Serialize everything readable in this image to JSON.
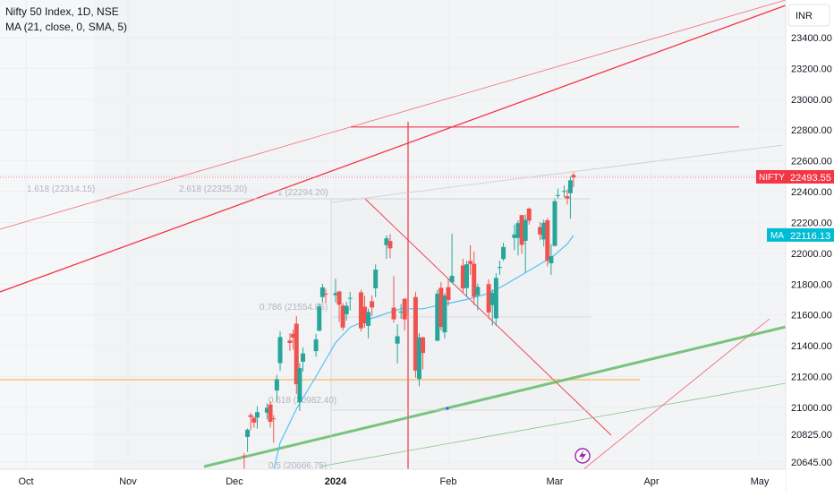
{
  "header": {
    "title": "Nifty 50 Index, 1D, NSE",
    "indicator": "MA (21, close, 0, SMA, 5)"
  },
  "currency_button": "INR",
  "price_tags": {
    "nifty_label": "NIFTY",
    "nifty_value": "22493.55",
    "ma_label": "MA",
    "ma_value": "22116.13"
  },
  "colors": {
    "up": "#26a69a",
    "down": "#ef5350",
    "ma_line": "#4fc3f7",
    "trendline_red": "#f23645",
    "trendline_green": "#66bb6a",
    "horizontal_orange": "#ff9800",
    "nifty_tag": "#f23645",
    "ma_tag": "#00bcd4",
    "lightning_icon": "#9c27b0"
  },
  "fib_labels": [
    {
      "text": "1.618 (22314.15)"
    },
    {
      "text": "2.618 (22325.20)"
    },
    {
      "text": "1 (22294.20)"
    },
    {
      "text": "0.786 (21554.85)"
    },
    {
      "text": "0.618 (20982.40)"
    },
    {
      "text": "0.5 (20666.75)"
    }
  ],
  "chart_data": {
    "type": "candlestick",
    "title": "Nifty 50 Index, 1D, NSE",
    "y_ticks": [
      20645.0,
      20825.0,
      21000.0,
      21200.0,
      21400.0,
      21600.0,
      21800.0,
      22000.0,
      22200.0,
      22400.0,
      22600.0,
      22800.0,
      23000.0,
      23200.0,
      23400.0
    ],
    "y_tick_labels": [
      "20645.00",
      "20825.00",
      "21000.00",
      "21200.00",
      "21400.00",
      "21600.00",
      "21800.00",
      "22000.00",
      "22200.00",
      "22400.00",
      "22600.00",
      "22800.00",
      "23000.00",
      "23200.00",
      "23400.00"
    ],
    "x_ticks": [
      "2023-10-01",
      "2023-11-01",
      "2023-12-01",
      "2024-01-01",
      "2024-02-01",
      "2024-03-01",
      "2024-04-01",
      "2024-05-01"
    ],
    "x_tick_labels": [
      "Oct",
      "Nov",
      "Dec",
      "2024",
      "Feb",
      "Mar",
      "Apr",
      "May"
    ],
    "candles": [
      {
        "date": "2023-12-04",
        "open": 20687,
        "high": 20703,
        "low": 20601,
        "close": 20686
      },
      {
        "date": "2023-12-05",
        "open": 20808,
        "high": 20864,
        "low": 20711,
        "close": 20855
      },
      {
        "date": "2023-12-06",
        "open": 20950,
        "high": 20962,
        "low": 20853,
        "close": 20937
      },
      {
        "date": "2023-12-07",
        "open": 20932,
        "high": 20941,
        "low": 20868,
        "close": 20901
      },
      {
        "date": "2023-12-08",
        "open": 20934,
        "high": 21007,
        "low": 20862,
        "close": 20969
      },
      {
        "date": "2023-12-11",
        "open": 20966,
        "high": 21026,
        "low": 20923,
        "close": 20997
      },
      {
        "date": "2023-12-12",
        "open": 21019,
        "high": 21038,
        "low": 20868,
        "close": 20906
      },
      {
        "date": "2023-12-13",
        "open": 20929,
        "high": 20950,
        "low": 20770,
        "close": 20926
      },
      {
        "date": "2023-12-14",
        "open": 21110,
        "high": 21211,
        "low": 21036,
        "close": 21183
      },
      {
        "date": "2023-12-15",
        "open": 21287,
        "high": 21493,
        "low": 21237,
        "close": 21457
      },
      {
        "date": "2023-12-18",
        "open": 21434,
        "high": 21482,
        "low": 21366,
        "close": 21418
      },
      {
        "date": "2023-12-19",
        "open": 21477,
        "high": 21505,
        "low": 21375,
        "close": 21453
      },
      {
        "date": "2023-12-20",
        "open": 21543,
        "high": 21593,
        "low": 21087,
        "close": 21150
      },
      {
        "date": "2023-12-21",
        "open": 21034,
        "high": 21288,
        "low": 20977,
        "close": 21255
      },
      {
        "date": "2023-12-22",
        "open": 21296,
        "high": 21390,
        "low": 21232,
        "close": 21350
      },
      {
        "date": "2023-12-26",
        "open": 21365,
        "high": 21477,
        "low": 21329,
        "close": 21441
      },
      {
        "date": "2023-12-27",
        "open": 21497,
        "high": 21675,
        "low": 21495,
        "close": 21655
      },
      {
        "date": "2023-12-28",
        "open": 21716,
        "high": 21802,
        "low": 21680,
        "close": 21779
      },
      {
        "date": "2023-12-29",
        "open": 21738,
        "high": 21770,
        "low": 21677,
        "close": 21732
      },
      {
        "date": "2024-01-01",
        "open": 21728,
        "high": 21834,
        "low": 21680,
        "close": 21742
      },
      {
        "date": "2024-01-02",
        "open": 21752,
        "high": 21756,
        "low": 21555,
        "close": 21666
      },
      {
        "date": "2024-01-03",
        "open": 21661,
        "high": 21677,
        "low": 21500,
        "close": 21518
      },
      {
        "date": "2024-01-04",
        "open": 21605,
        "high": 21685,
        "low": 21564,
        "close": 21659
      },
      {
        "date": "2024-01-05",
        "open": 21705,
        "high": 21749,
        "low": 21629,
        "close": 21711
      },
      {
        "date": "2024-01-08",
        "open": 21747,
        "high": 21763,
        "low": 21492,
        "close": 21513
      },
      {
        "date": "2024-01-09",
        "open": 21653,
        "high": 21724,
        "low": 21517,
        "close": 21545
      },
      {
        "date": "2024-01-10",
        "open": 21529,
        "high": 21641,
        "low": 21448,
        "close": 21619
      },
      {
        "date": "2024-01-11",
        "open": 21689,
        "high": 21726,
        "low": 21593,
        "close": 21648
      },
      {
        "date": "2024-01-12",
        "open": 21773,
        "high": 21928,
        "low": 21715,
        "close": 21894
      },
      {
        "date": "2024-01-15",
        "open": 22053,
        "high": 22116,
        "low": 21964,
        "close": 22097
      },
      {
        "date": "2024-01-16",
        "open": 22080,
        "high": 22124,
        "low": 21969,
        "close": 22032
      },
      {
        "date": "2024-01-17",
        "open": 21647,
        "high": 21851,
        "low": 21550,
        "close": 21572
      },
      {
        "date": "2024-01-18",
        "open": 21414,
        "high": 21539,
        "low": 21285,
        "close": 21462
      },
      {
        "date": "2024-01-19",
        "open": 21615,
        "high": 21671,
        "low": 21575,
        "close": 21622
      },
      {
        "date": "2024-01-20",
        "open": 21706,
        "high": 21707,
        "low": 21500,
        "close": 21571
      },
      {
        "date": "2024-01-23",
        "open": 21716,
        "high": 21750,
        "low": 21192,
        "close": 21239
      },
      {
        "date": "2024-01-24",
        "open": 21185,
        "high": 21482,
        "low": 21137,
        "close": 21454
      },
      {
        "date": "2024-01-25",
        "open": 21454,
        "high": 21459,
        "low": 21247,
        "close": 21353
      },
      {
        "date": "2024-01-29",
        "open": 21433,
        "high": 21764,
        "low": 21429,
        "close": 21738
      },
      {
        "date": "2024-01-30",
        "open": 21776,
        "high": 21814,
        "low": 21501,
        "close": 21522
      },
      {
        "date": "2024-01-31",
        "open": 21487,
        "high": 21741,
        "low": 21448,
        "close": 21726
      },
      {
        "date": "2024-02-01",
        "open": 21780,
        "high": 21833,
        "low": 21659,
        "close": 21697
      },
      {
        "date": "2024-02-02",
        "open": 21812,
        "high": 22127,
        "low": 21805,
        "close": 21854
      },
      {
        "date": "2024-02-05",
        "open": 21921,
        "high": 21964,
        "low": 21742,
        "close": 21772
      },
      {
        "date": "2024-02-06",
        "open": 21775,
        "high": 21952,
        "low": 21715,
        "close": 21929
      },
      {
        "date": "2024-02-07",
        "open": 21950,
        "high": 22053,
        "low": 21860,
        "close": 21931
      },
      {
        "date": "2024-02-08",
        "open": 21932,
        "high": 22011,
        "low": 21665,
        "close": 21718
      },
      {
        "date": "2024-02-09",
        "open": 21727,
        "high": 21804,
        "low": 21629,
        "close": 21782
      },
      {
        "date": "2024-02-12",
        "open": 21800,
        "high": 21831,
        "low": 21574,
        "close": 21616
      },
      {
        "date": "2024-02-13",
        "open": 21664,
        "high": 21766,
        "low": 21530,
        "close": 21743
      },
      {
        "date": "2024-02-14",
        "open": 21578,
        "high": 21870,
        "low": 21530,
        "close": 21840
      },
      {
        "date": "2024-02-15",
        "open": 21906,
        "high": 21953,
        "low": 21860,
        "close": 21911
      },
      {
        "date": "2024-02-16",
        "open": 21963,
        "high": 22069,
        "low": 21950,
        "close": 22041
      },
      {
        "date": "2024-02-19",
        "open": 22100,
        "high": 22186,
        "low": 22021,
        "close": 22122
      },
      {
        "date": "2024-02-20",
        "open": 22099,
        "high": 22215,
        "low": 21985,
        "close": 22196
      },
      {
        "date": "2024-02-21",
        "open": 22248,
        "high": 22249,
        "low": 21997,
        "close": 22055
      },
      {
        "date": "2024-02-22",
        "open": 22081,
        "high": 22252,
        "low": 21875,
        "close": 22217
      },
      {
        "date": "2024-02-23",
        "open": 22290,
        "high": 22297,
        "low": 22186,
        "close": 22212
      },
      {
        "date": "2024-02-26",
        "open": 22170,
        "high": 22202,
        "low": 22085,
        "close": 22122
      },
      {
        "date": "2024-02-27",
        "open": 22090,
        "high": 22218,
        "low": 22045,
        "close": 22198
      },
      {
        "date": "2024-02-28",
        "open": 22214,
        "high": 22230,
        "low": 21915,
        "close": 21951
      },
      {
        "date": "2024-02-29",
        "open": 21935,
        "high": 22060,
        "low": 21860,
        "close": 21982
      },
      {
        "date": "2024-03-01",
        "open": 22048,
        "high": 22353,
        "low": 22047,
        "close": 22338
      },
      {
        "date": "2024-03-02",
        "open": 22378,
        "high": 22420,
        "low": 22355,
        "close": 22378
      },
      {
        "date": "2024-03-04",
        "open": 22403,
        "high": 22440,
        "low": 22363,
        "close": 22405
      },
      {
        "date": "2024-03-05",
        "open": 22371,
        "high": 22416,
        "low": 22317,
        "close": 22356
      },
      {
        "date": "2024-03-06",
        "open": 22390,
        "high": 22497,
        "low": 22224,
        "close": 22474
      },
      {
        "date": "2024-03-07",
        "open": 22508,
        "high": 22525,
        "low": 22430,
        "close": 22493
      }
    ],
    "ma": {
      "name": "MA (21, close, 0, SMA, 5)",
      "dates": [
        "2023-12-12",
        "2023-12-15",
        "2023-12-20",
        "2023-12-26",
        "2024-01-01",
        "2024-01-05",
        "2024-01-10",
        "2024-01-15",
        "2024-01-19",
        "2024-01-25",
        "2024-01-31",
        "2024-02-06",
        "2024-02-12",
        "2024-02-16",
        "2024-02-21",
        "2024-02-26",
        "2024-03-01",
        "2024-03-05",
        "2024-03-07"
      ],
      "values": [
        20500,
        20770,
        20990,
        21200,
        21420,
        21520,
        21570,
        21610,
        21640,
        21640,
        21670,
        21700,
        21740,
        21790,
        21860,
        21930,
        21990,
        22060,
        22116
      ]
    },
    "horizontal_lines": [
      {
        "name": "resistance",
        "value": 22820,
        "color": "#f23645"
      },
      {
        "name": "orange-level",
        "value": 21180,
        "color": "#ff9800"
      },
      {
        "name": "last-price",
        "value": 22493.55,
        "color": "#f23645"
      }
    ],
    "ylim": [
      20600,
      23560
    ],
    "grid": true
  }
}
